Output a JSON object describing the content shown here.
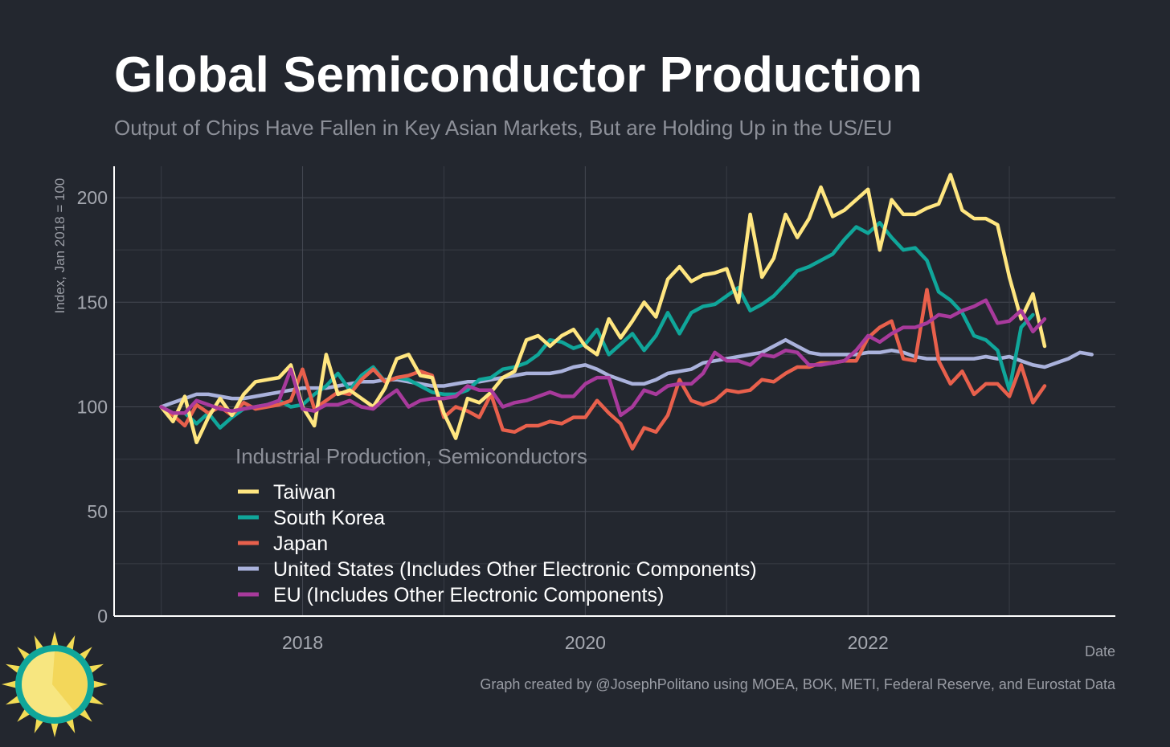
{
  "header": {
    "title": "Global Semiconductor Production",
    "subtitle": "Output of Chips Have Fallen in Key Asian Markets, But are Holding Up in the US/EU"
  },
  "footer": {
    "credit": "Graph created by @JosephPolitano using MOEA, BOK, METI, Federal Reserve, and Eurostat Data"
  },
  "logo": {
    "icon": "sun-logo-icon"
  },
  "chart_data": {
    "type": "line",
    "xlabel": "Date",
    "ylabel": "Index, Jan 2018 = 100",
    "x_start": "2017-01",
    "x_step": "month",
    "xlim": [
      "2016-09",
      "2023-10"
    ],
    "ylim": [
      0,
      215
    ],
    "x_ticks": [
      "2018",
      "2020",
      "2022"
    ],
    "y_ticks": [
      "0",
      "50",
      "100",
      "150",
      "200"
    ],
    "grid": true,
    "legend": {
      "title": "Industrial Production, Semiconductors",
      "position": "inside-bottom-left"
    },
    "series": [
      {
        "name": "Taiwan",
        "color": "#ffe680",
        "values": [
          100,
          93,
          105,
          83,
          95,
          104,
          96,
          106,
          112,
          113,
          114,
          120,
          100,
          91,
          125,
          106,
          108,
          104,
          100,
          109,
          123,
          125,
          115,
          114,
          97,
          85,
          104,
          102,
          107,
          114,
          117,
          132,
          134,
          129,
          134,
          137,
          129,
          125,
          142,
          133,
          141,
          150,
          143,
          161,
          167,
          160,
          163,
          164,
          166,
          150,
          192,
          162,
          171,
          192,
          181,
          190,
          205,
          191,
          194,
          199,
          204,
          175,
          199,
          192,
          192,
          195,
          197,
          211,
          194,
          190,
          190,
          187,
          162,
          142,
          154,
          129
        ]
      },
      {
        "name": "South Korea",
        "color": "#10a69a",
        "values": [
          100,
          97,
          97,
          92,
          97,
          90,
          95,
          99,
          100,
          101,
          103,
          100,
          101,
          106,
          110,
          116,
          108,
          115,
          119,
          112,
          114,
          113,
          110,
          107,
          106,
          106,
          108,
          113,
          114,
          118,
          119,
          121,
          125,
          132,
          131,
          128,
          130,
          137,
          125,
          130,
          135,
          127,
          134,
          145,
          135,
          145,
          148,
          149,
          153,
          157,
          146,
          149,
          153,
          159,
          165,
          167,
          170,
          173,
          180,
          186,
          183,
          188,
          181,
          175,
          176,
          170,
          155,
          151,
          145,
          134,
          132,
          127,
          108,
          138,
          144
        ]
      },
      {
        "name": "Japan",
        "color": "#e8604c",
        "values": [
          100,
          96,
          91,
          101,
          97,
          100,
          96,
          102,
          99,
          100,
          101,
          103,
          118,
          99,
          103,
          107,
          106,
          113,
          118,
          112,
          114,
          115,
          117,
          115,
          95,
          100,
          98,
          95,
          106,
          89,
          88,
          91,
          91,
          93,
          92,
          95,
          95,
          103,
          97,
          92,
          80,
          90,
          88,
          96,
          113,
          103,
          101,
          103,
          108,
          107,
          108,
          113,
          112,
          116,
          119,
          119,
          121,
          121,
          122,
          122,
          133,
          138,
          141,
          123,
          122,
          156,
          122,
          111,
          117,
          106,
          111,
          111,
          105,
          120,
          102,
          110
        ]
      },
      {
        "name": "United States (Includes Other Electronic Components)",
        "color": "#aab2dc",
        "values": [
          100,
          102,
          104,
          106,
          106,
          105,
          104,
          104,
          105,
          106,
          107,
          108,
          109,
          109,
          109,
          110,
          111,
          112,
          112,
          113,
          113,
          112,
          111,
          110,
          110,
          111,
          112,
          112,
          113,
          114,
          115,
          116,
          116,
          116,
          117,
          119,
          120,
          118,
          115,
          113,
          111,
          111,
          113,
          116,
          117,
          118,
          121,
          122,
          123,
          124,
          125,
          126,
          129,
          132,
          129,
          126,
          125,
          125,
          125,
          125,
          126,
          126,
          127,
          126,
          124,
          123,
          123,
          123,
          123,
          123,
          124,
          123,
          124,
          122,
          120,
          119,
          121,
          123,
          126,
          125
        ]
      },
      {
        "name": "EU (Includes Other Electronic Components)",
        "color": "#a83a9c",
        "values": [
          100,
          97,
          97,
          103,
          101,
          99,
          98,
          99,
          100,
          101,
          103,
          118,
          99,
          98,
          101,
          101,
          103,
          100,
          99,
          104,
          108,
          100,
          103,
          104,
          104,
          105,
          110,
          108,
          108,
          100,
          102,
          103,
          105,
          107,
          105,
          105,
          111,
          114,
          114,
          96,
          100,
          108,
          106,
          110,
          111,
          111,
          116,
          126,
          122,
          122,
          120,
          125,
          124,
          127,
          126,
          120,
          120,
          121,
          122,
          127,
          134,
          131,
          135,
          138,
          138,
          140,
          144,
          143,
          146,
          148,
          151,
          140,
          141,
          146,
          136,
          142
        ]
      }
    ]
  }
}
